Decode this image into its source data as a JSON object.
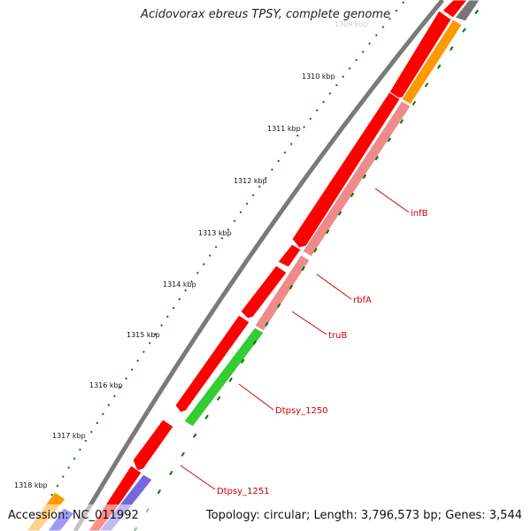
{
  "title": "Acidovorax ebreus TPSY, complete genome",
  "footer": {
    "accession": "Accession: NC_011992",
    "summary": "Topology: circular; Length: 3,796,573 bp; Genes: 3,544"
  },
  "scale": {
    "unit": "kbp",
    "ticks": [
      {
        "label": "1309 kbp",
        "faded": true
      },
      {
        "label": "1310 kbp"
      },
      {
        "label": "1311 kbp"
      },
      {
        "label": "1312 kbp"
      },
      {
        "label": "1313 kbp"
      },
      {
        "label": "1314 kbp"
      },
      {
        "label": "1315 kbp"
      },
      {
        "label": "1316 kbp"
      },
      {
        "label": "1317 kbp"
      },
      {
        "label": "1318 kbp"
      }
    ]
  },
  "gene_labels": [
    "infB",
    "rbfA",
    "truB",
    "Dtpsy_1250",
    "Dtpsy_1251"
  ],
  "colors": {
    "backbone": "#7a7a7a",
    "cds_forward": "#ff0000",
    "cds_reverse": "#ff0000",
    "highlight_infB": "#f08a8a",
    "highlight_1250": "#33cc33",
    "orange": "#ff9900",
    "purple": "#7766dd",
    "blue": "#2222ee",
    "tick": "#007700",
    "label": "#cc0000"
  }
}
